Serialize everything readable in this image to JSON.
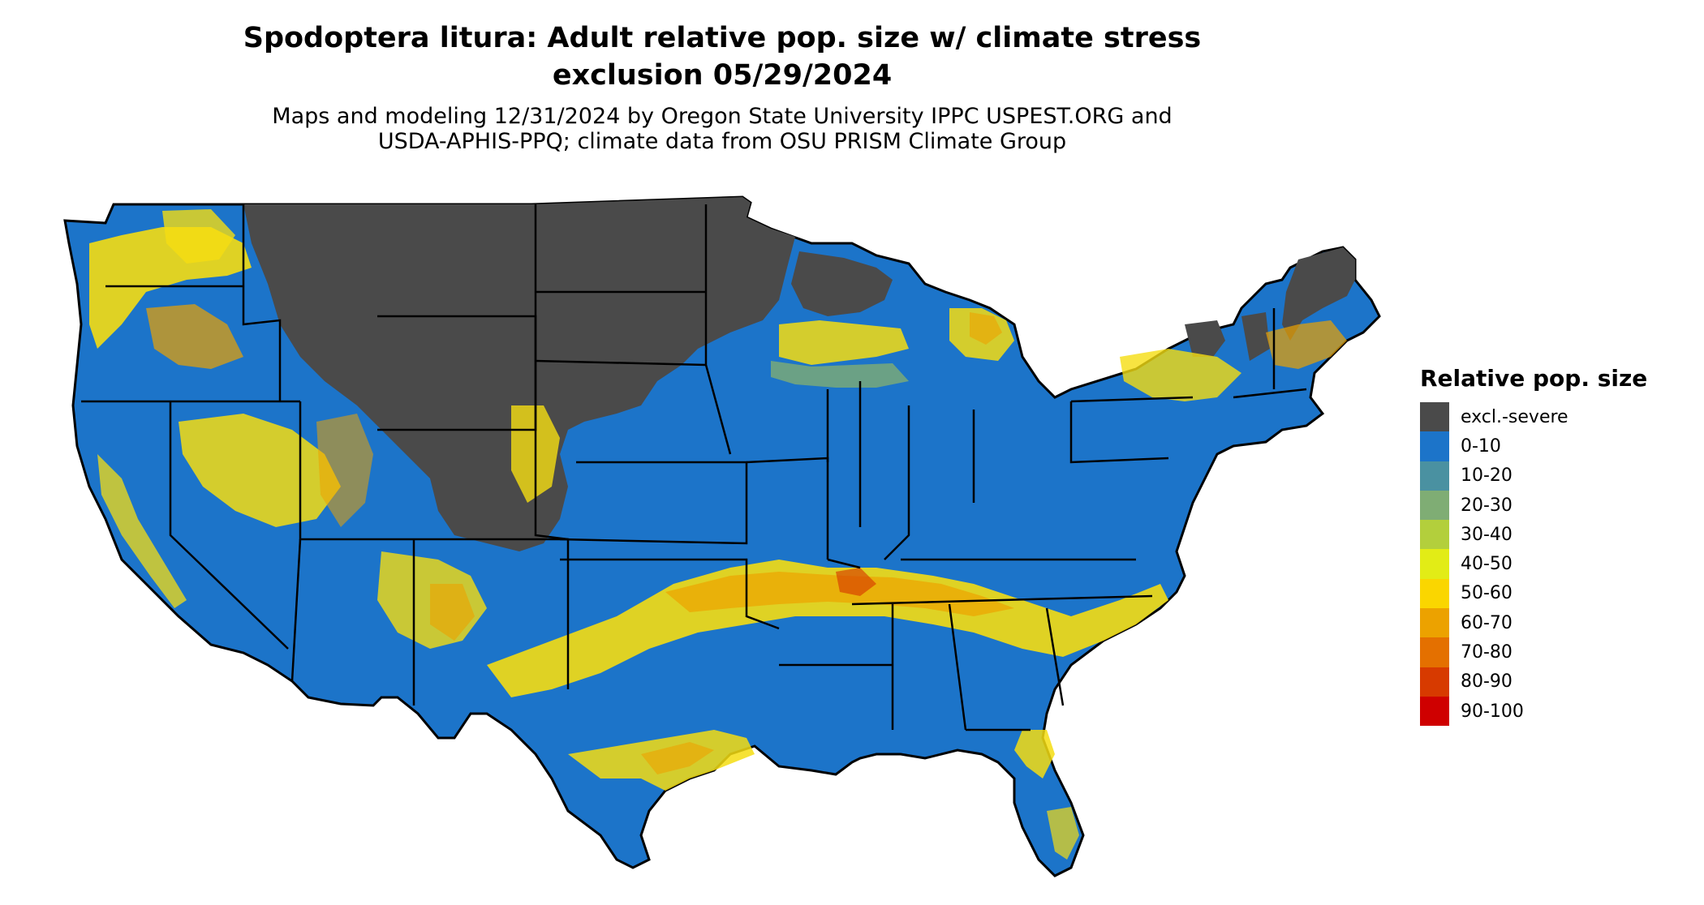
{
  "title_line1": "Spodoptera litura: Adult relative pop. size w/ climate stress",
  "title_line2": "exclusion 05/29/2024",
  "subtitle_line1": "Maps and modeling 12/31/2024 by Oregon State University IPPC USPEST.ORG and",
  "subtitle_line2": "USDA-APHIS-PPQ; climate data from OSU PRISM Climate Group",
  "legend": {
    "title": "Relative pop. size",
    "items": [
      {
        "label": "excl.-severe",
        "color": "#4a4a4a"
      },
      {
        "label": "0-10",
        "color": "#1c74c9"
      },
      {
        "label": "10-20",
        "color": "#4a91a1"
      },
      {
        "label": "20-30",
        "color": "#7fad74"
      },
      {
        "label": "30-40",
        "color": "#b3cf3c"
      },
      {
        "label": "40-50",
        "color": "#e2ec16"
      },
      {
        "label": "50-60",
        "color": "#fad600"
      },
      {
        "label": "60-70",
        "color": "#eca200"
      },
      {
        "label": "70-80",
        "color": "#e47000"
      },
      {
        "label": "80-90",
        "color": "#d73a00"
      },
      {
        "label": "90-100",
        "color": "#cf0000"
      }
    ]
  },
  "map_colors": {
    "excluded": "#4a4a4a",
    "low": "#1c74c9",
    "yellow": "#f5dd12",
    "orange": "#eca200",
    "red": "#d73a00",
    "green": "#7fad74",
    "border": "#000000"
  }
}
